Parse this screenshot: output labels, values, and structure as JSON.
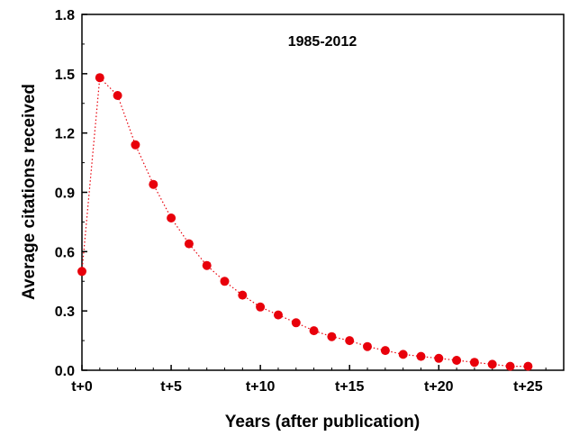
{
  "chart_data": {
    "type": "line",
    "annotation": "1985-2012",
    "xlabel": "Years (after publication)",
    "ylabel": "Average citations received",
    "xlim": [
      0,
      27
    ],
    "ylim": [
      0,
      1.8
    ],
    "x_ticks": [
      {
        "value": 0,
        "label": "t+0"
      },
      {
        "value": 5,
        "label": "t+5"
      },
      {
        "value": 10,
        "label": "t+10"
      },
      {
        "value": 15,
        "label": "t+15"
      },
      {
        "value": 20,
        "label": "t+20"
      },
      {
        "value": 25,
        "label": "t+25"
      }
    ],
    "y_ticks": [
      {
        "value": 0.0,
        "label": "0.0"
      },
      {
        "value": 0.3,
        "label": "0.3"
      },
      {
        "value": 0.6,
        "label": "0.6"
      },
      {
        "value": 0.9,
        "label": "0.9"
      },
      {
        "value": 1.2,
        "label": "1.2"
      },
      {
        "value": 1.5,
        "label": "1.5"
      },
      {
        "value": 1.8,
        "label": "1.8"
      }
    ],
    "grid": false,
    "series": [
      {
        "color": "#e8000b",
        "line_style": "dotted",
        "marker": "circle",
        "x": [
          0,
          1,
          2,
          3,
          4,
          5,
          6,
          7,
          8,
          9,
          10,
          11,
          12,
          13,
          14,
          15,
          16,
          17,
          18,
          19,
          20,
          21,
          22,
          23,
          24,
          25
        ],
        "y": [
          0.5,
          1.48,
          1.39,
          1.14,
          0.94,
          0.77,
          0.64,
          0.53,
          0.45,
          0.38,
          0.32,
          0.28,
          0.24,
          0.2,
          0.17,
          0.15,
          0.12,
          0.1,
          0.08,
          0.07,
          0.06,
          0.05,
          0.04,
          0.03,
          0.02,
          0.02
        ]
      }
    ]
  }
}
